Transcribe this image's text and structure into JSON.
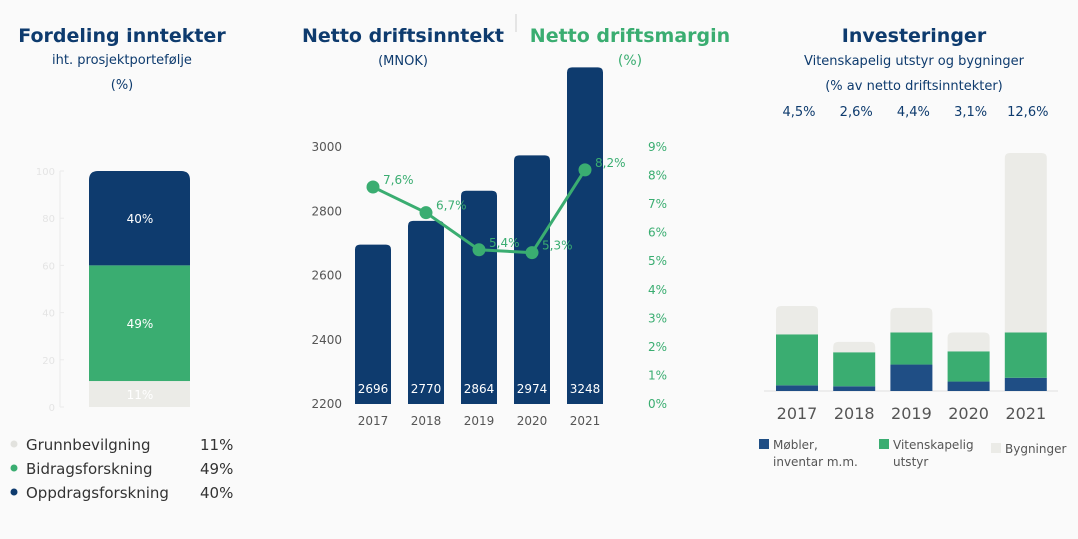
{
  "colors": {
    "navy": "#0e3b6e",
    "green": "#3aad71",
    "grey": "#ebebe7"
  },
  "left": {
    "title": "Fordeling inntekter",
    "subtitle": "iht. prosjektportefølje",
    "unit": "(%)",
    "legend": [
      {
        "label": "Grunnbevilgning",
        "value": "11%"
      },
      {
        "label": "Bidragsforskning",
        "value": "49%"
      },
      {
        "label": "Oppdragsforskning",
        "value": "40%"
      }
    ]
  },
  "middle": {
    "title_left": "Netto driftsinntekt",
    "unit_left": "(MNOK)",
    "title_right": "Netto driftsmargin",
    "unit_right": "(%)"
  },
  "right": {
    "title": "Investeringer",
    "subtitle1": "Vitenskapelig utstyr og bygninger",
    "subtitle2": "(% av netto driftsinntekter)",
    "totals": [
      "4,5%",
      "2,6%",
      "4,4%",
      "3,1%",
      "12,6%"
    ],
    "legend": [
      {
        "label1": "Møbler,",
        "label2": "inventar m.m."
      },
      {
        "label1": "Vitenskapelig",
        "label2": "utstyr"
      },
      {
        "label1": "Bygninger",
        "label2": ""
      }
    ]
  },
  "chart_data": [
    {
      "type": "bar",
      "stacked": true,
      "categories": [
        ""
      ],
      "series": [
        {
          "name": "Grunnbevilgning",
          "values": [
            11
          ],
          "label": "11%",
          "color": "#ebebe7"
        },
        {
          "name": "Bidragsforskning",
          "values": [
            49
          ],
          "label": "49%",
          "color": "#3aad71"
        },
        {
          "name": "Oppdragsforskning",
          "values": [
            40
          ],
          "label": "40%",
          "color": "#0e3b6e"
        }
      ],
      "ylim": [
        0,
        100
      ],
      "yticks": [
        "0",
        "20",
        "40",
        "60",
        "80",
        "100"
      ],
      "legend": "bottom"
    },
    {
      "type": "bar+line",
      "categories": [
        "2017",
        "2018",
        "2019",
        "2020",
        "2021"
      ],
      "bars": {
        "values": [
          2696,
          2770,
          2864,
          2974,
          3248
        ],
        "labels": [
          "2696",
          "2770",
          "2864",
          "2974",
          "3248"
        ],
        "ylim": [
          2200,
          3000
        ],
        "yticks": [
          "2200",
          "2400",
          "2600",
          "2800",
          "3000"
        ],
        "color": "#0e3b6e"
      },
      "line": {
        "values": [
          7.6,
          6.7,
          5.4,
          5.3,
          8.2
        ],
        "labels": [
          "7,6%",
          "6,7%",
          "5,4%",
          "5,3%",
          "8,2%"
        ],
        "ylim": [
          0,
          9
        ],
        "yticks": [
          "0%",
          "1%",
          "2%",
          "3%",
          "4%",
          "5%",
          "6%",
          "7%",
          "8%",
          "9%"
        ],
        "color": "#3aad71"
      }
    },
    {
      "type": "bar",
      "stacked": true,
      "categories": [
        "2017",
        "2018",
        "2019",
        "2020",
        "2021"
      ],
      "series": [
        {
          "name": "Møbler, inventar m.m.",
          "values": [
            0.3,
            0.25,
            1.4,
            0.5,
            0.7
          ],
          "color": "#1f4e85"
        },
        {
          "name": "Vitenskapelig utstyr",
          "values": [
            2.7,
            1.8,
            1.7,
            1.6,
            2.4
          ],
          "color": "#3aad71"
        },
        {
          "name": "Bygninger",
          "values": [
            1.5,
            0.55,
            1.3,
            1.0,
            9.5
          ],
          "color": "#ebebe7"
        }
      ],
      "ylim": [
        0,
        12.6
      ],
      "legend": "bottom"
    }
  ]
}
